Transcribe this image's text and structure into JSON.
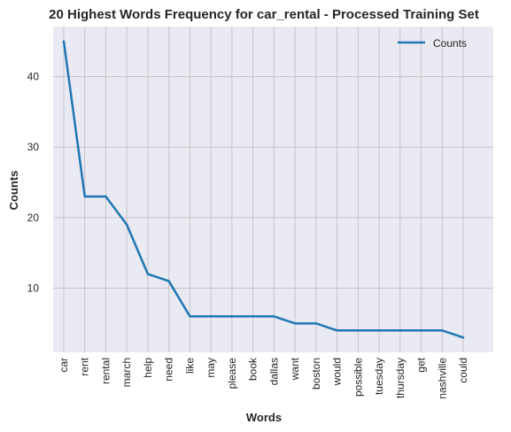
{
  "chart_data": {
    "type": "line",
    "title": "20 Highest Words Frequency for car_rental - Processed Training Set",
    "xlabel": "Words",
    "ylabel": "Counts",
    "categories": [
      "car",
      "rent",
      "rental",
      "march",
      "help",
      "need",
      "like",
      "may",
      "please",
      "book",
      "dallas",
      "want",
      "boston",
      "would",
      "possible",
      "tuesday",
      "thursday",
      "get",
      "nashville",
      "could"
    ],
    "series": [
      {
        "name": "Counts",
        "values": [
          45,
          23,
          23,
          19,
          12,
          11,
          6,
          6,
          6,
          6,
          6,
          5,
          5,
          4,
          4,
          4,
          4,
          4,
          4,
          3
        ]
      }
    ],
    "yticks": [
      10,
      20,
      30,
      40
    ],
    "ylim": [
      0.9,
      47.1
    ],
    "grid": true,
    "legend": "top-right",
    "line_color": "#1f77b4"
  }
}
